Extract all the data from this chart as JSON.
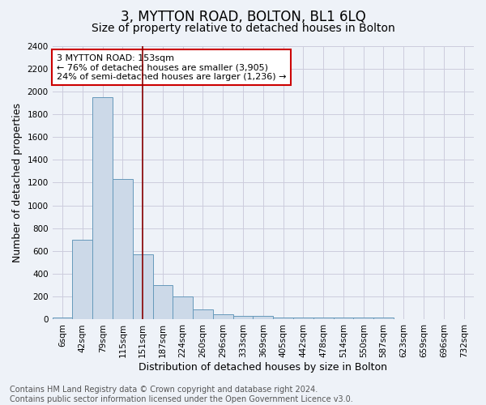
{
  "title": "3, MYTTON ROAD, BOLTON, BL1 6LQ",
  "subtitle": "Size of property relative to detached houses in Bolton",
  "xlabel": "Distribution of detached houses by size in Bolton",
  "ylabel": "Number of detached properties",
  "footer": "Contains HM Land Registry data © Crown copyright and database right 2024.\nContains public sector information licensed under the Open Government Licence v3.0.",
  "bar_labels": [
    "6sqm",
    "42sqm",
    "79sqm",
    "115sqm",
    "151sqm",
    "187sqm",
    "224sqm",
    "260sqm",
    "296sqm",
    "333sqm",
    "369sqm",
    "405sqm",
    "442sqm",
    "478sqm",
    "514sqm",
    "550sqm",
    "587sqm",
    "623sqm",
    "659sqm",
    "696sqm",
    "732sqm"
  ],
  "bar_values": [
    20,
    700,
    1950,
    1230,
    570,
    305,
    200,
    85,
    45,
    35,
    35,
    20,
    20,
    20,
    20,
    20,
    20,
    0,
    0,
    0,
    0
  ],
  "bar_color": "#ccd9e8",
  "bar_edge_color": "#6699bb",
  "property_line_x": 4,
  "property_line_color": "#880000",
  "annotation_text": "3 MYTTON ROAD: 153sqm\n← 76% of detached houses are smaller (3,905)\n24% of semi-detached houses are larger (1,236) →",
  "annotation_box_color": "#ffffff",
  "annotation_box_edge": "#cc0000",
  "ylim": [
    0,
    2400
  ],
  "yticks": [
    0,
    200,
    400,
    600,
    800,
    1000,
    1200,
    1400,
    1600,
    1800,
    2000,
    2200,
    2400
  ],
  "grid_color": "#ccccdd",
  "bg_color": "#eef2f8",
  "title_fontsize": 12,
  "subtitle_fontsize": 10,
  "tick_fontsize": 7.5,
  "label_fontsize": 9,
  "footer_fontsize": 7,
  "annotation_fontsize": 8
}
